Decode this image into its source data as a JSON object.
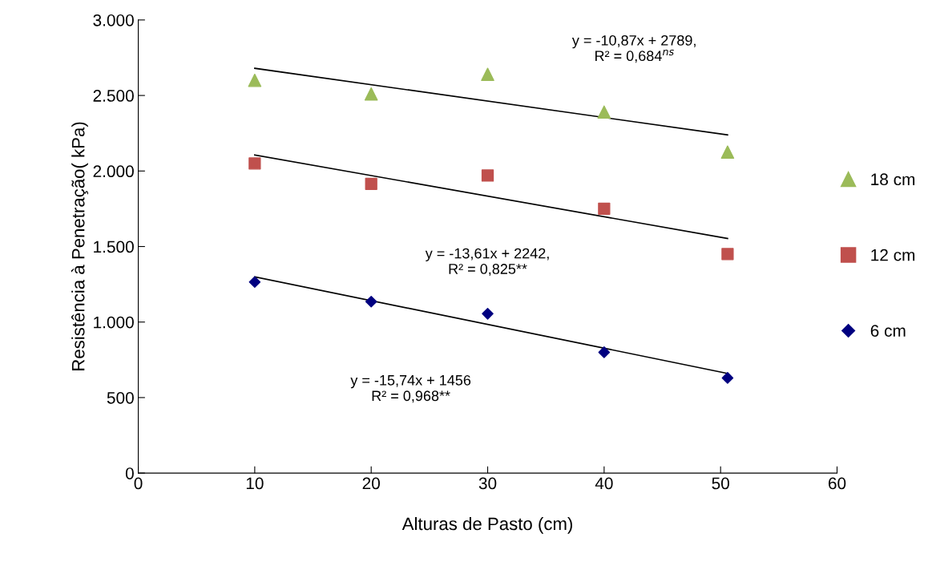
{
  "chart_data": {
    "type": "scatter",
    "xlabel": "Alturas de Pasto (cm)",
    "ylabel": "Resistência à Penetração( kPa)",
    "xlim": [
      0,
      60
    ],
    "xticks": [
      0,
      10,
      20,
      30,
      40,
      50,
      60
    ],
    "ylim": [
      0,
      3000
    ],
    "yticks": [
      {
        "value": 0,
        "label": "0"
      },
      {
        "value": 500,
        "label": "500"
      },
      {
        "value": 1000,
        "label": "1.000"
      },
      {
        "value": 1500,
        "label": "1.500"
      },
      {
        "value": 2000,
        "label": "2.000"
      },
      {
        "value": 2500,
        "label": "2.500"
      },
      {
        "value": 3000,
        "label": "3.000"
      }
    ],
    "grid": false,
    "legend": "right",
    "series": [
      {
        "name": "18 cm",
        "color": "#9bbb59",
        "marker": "triangle",
        "x": [
          10,
          20,
          30,
          40,
          50.6
        ],
        "values": [
          2600,
          2510,
          2640,
          2390,
          2125
        ]
      },
      {
        "name": "12 cm",
        "color": "#c0504d",
        "marker": "square",
        "x": [
          10,
          20,
          30,
          40,
          50.6
        ],
        "values": [
          2050,
          1915,
          1970,
          1750,
          1450
        ]
      },
      {
        "name": "6 cm",
        "color": "#000080",
        "marker": "diamond",
        "x": [
          10,
          20,
          30,
          40,
          50.6
        ],
        "values": [
          1265,
          1135,
          1055,
          800,
          630
        ]
      },
      {
        "type": "line",
        "color": "#000000",
        "marker": "none",
        "x": [
          10,
          50.6
        ],
        "values": [
          2680,
          2239
        ]
      },
      {
        "type": "line",
        "color": "#000000",
        "marker": "none",
        "x": [
          10,
          50.6
        ],
        "values": [
          2106,
          1553
        ]
      },
      {
        "type": "line",
        "color": "#000000",
        "marker": "none",
        "x": [
          10,
          50.6
        ],
        "values": [
          1299,
          660
        ]
      }
    ],
    "annotations": [
      "y = -10,87x + 2789,\nR² = 0,684$^{ns}$",
      "y = -13,61x + 2242,\nR² = 0,825**",
      "y = -15,74x + 1456\nR² = 0,968**"
    ]
  }
}
